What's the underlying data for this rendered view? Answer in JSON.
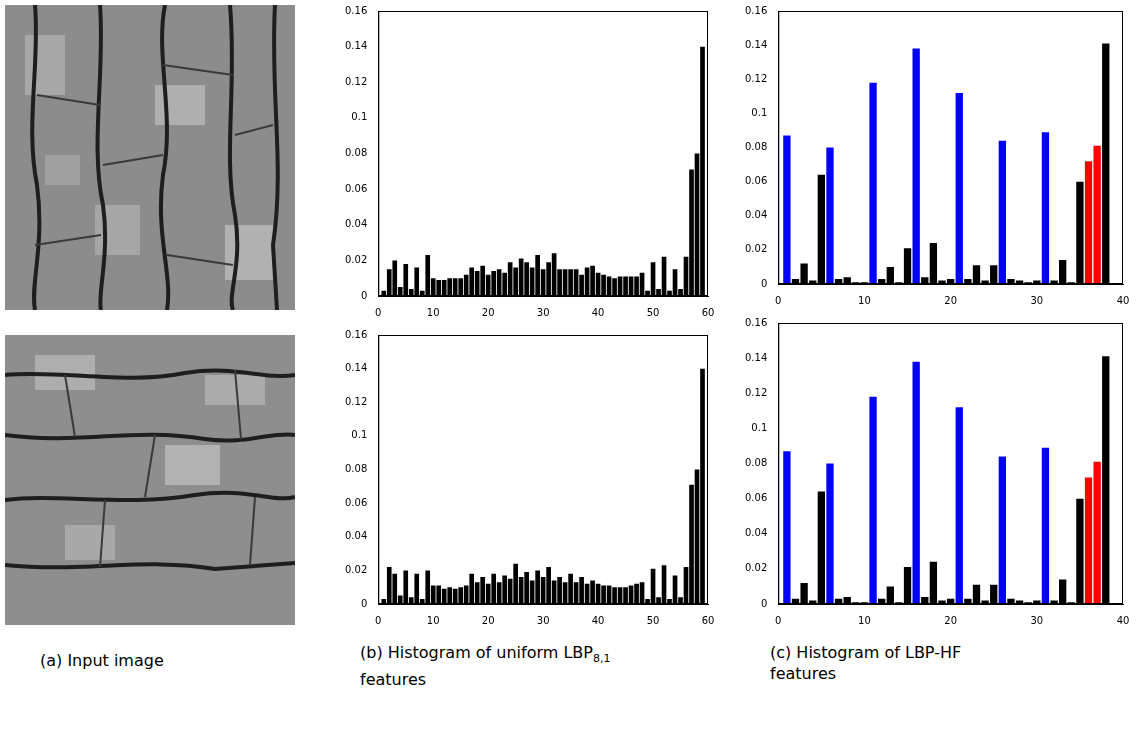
{
  "captions": [
    {
      "text": "(a) Input image"
    },
    {
      "text": "(b) Histogram of uniform LBP",
      "subscript": "8,1",
      "text_after": " features"
    },
    {
      "text": "(c) Histogram of LBP-HF features"
    }
  ],
  "chart_data": [
    {
      "type": "bar",
      "x": [
        1,
        2,
        3,
        4,
        5,
        6,
        7,
        8,
        9,
        10,
        11,
        12,
        13,
        14,
        15,
        16,
        17,
        18,
        19,
        20,
        21,
        22,
        23,
        24,
        25,
        26,
        27,
        28,
        29,
        30,
        31,
        32,
        33,
        34,
        35,
        36,
        37,
        38,
        39,
        40,
        41,
        42,
        43,
        44,
        45,
        46,
        47,
        48,
        49,
        50,
        51,
        52,
        53,
        54,
        55,
        56,
        57,
        58,
        59
      ],
      "values": [
        0.003,
        0.015,
        0.02,
        0.005,
        0.018,
        0.004,
        0.016,
        0.003,
        0.023,
        0.01,
        0.009,
        0.009,
        0.01,
        0.01,
        0.01,
        0.012,
        0.016,
        0.014,
        0.017,
        0.012,
        0.014,
        0.015,
        0.013,
        0.019,
        0.016,
        0.021,
        0.019,
        0.016,
        0.023,
        0.015,
        0.019,
        0.024,
        0.015,
        0.015,
        0.015,
        0.015,
        0.012,
        0.016,
        0.017,
        0.013,
        0.012,
        0.011,
        0.01,
        0.011,
        0.011,
        0.011,
        0.011,
        0.013,
        0.003,
        0.019,
        0.004,
        0.022,
        0.003,
        0.015,
        0.004,
        0.022,
        0.071,
        0.08,
        0.14
      ],
      "color": "#000000",
      "xlim": [
        0,
        60
      ],
      "xticks": [
        0,
        10,
        20,
        30,
        40,
        50,
        60
      ],
      "ylim": [
        0,
        0.16
      ],
      "yticks": [
        0,
        0.02,
        0.04,
        0.06,
        0.08,
        0.1,
        0.12,
        0.14,
        0.16
      ],
      "grid": false
    },
    {
      "type": "bar",
      "x": [
        1,
        2,
        3,
        4,
        5,
        6,
        7,
        8,
        9,
        10,
        11,
        12,
        13,
        14,
        15,
        16,
        17,
        18,
        19,
        20,
        21,
        22,
        23,
        24,
        25,
        26,
        27,
        28,
        29,
        30,
        31,
        32,
        33,
        34,
        35,
        36,
        37,
        38,
        39,
        40,
        41,
        42,
        43,
        44,
        45,
        46,
        47,
        48,
        49,
        50,
        51,
        52,
        53,
        54,
        55,
        56,
        57,
        58,
        59
      ],
      "values": [
        0.003,
        0.022,
        0.018,
        0.005,
        0.02,
        0.004,
        0.018,
        0.003,
        0.02,
        0.011,
        0.011,
        0.009,
        0.01,
        0.009,
        0.01,
        0.011,
        0.018,
        0.013,
        0.016,
        0.012,
        0.018,
        0.013,
        0.017,
        0.015,
        0.024,
        0.016,
        0.019,
        0.014,
        0.02,
        0.016,
        0.022,
        0.014,
        0.016,
        0.013,
        0.018,
        0.013,
        0.016,
        0.012,
        0.014,
        0.012,
        0.011,
        0.011,
        0.01,
        0.01,
        0.01,
        0.011,
        0.012,
        0.013,
        0.003,
        0.021,
        0.004,
        0.023,
        0.003,
        0.017,
        0.004,
        0.022,
        0.071,
        0.08,
        0.14
      ],
      "color": "#000000",
      "xlim": [
        0,
        60
      ],
      "xticks": [
        0,
        10,
        20,
        30,
        40,
        50,
        60
      ],
      "ylim": [
        0,
        0.16
      ],
      "yticks": [
        0,
        0.02,
        0.04,
        0.06,
        0.08,
        0.1,
        0.12,
        0.14,
        0.16
      ],
      "grid": false
    },
    {
      "type": "bar",
      "x": [
        1,
        2,
        3,
        4,
        5,
        6,
        7,
        8,
        9,
        10,
        11,
        12,
        13,
        14,
        15,
        16,
        17,
        18,
        19,
        20,
        21,
        22,
        23,
        24,
        25,
        26,
        27,
        28,
        29,
        30,
        31,
        32,
        33,
        34,
        35,
        36,
        37,
        38
      ],
      "values": [
        0.087,
        0.003,
        0.012,
        0.002,
        0.064,
        0.08,
        0.003,
        0.004,
        0.001,
        0.001,
        0.118,
        0.003,
        0.01,
        0.001,
        0.021,
        0.138,
        0.004,
        0.024,
        0.002,
        0.003,
        0.112,
        0.003,
        0.011,
        0.002,
        0.011,
        0.084,
        0.003,
        0.002,
        0.001,
        0.002,
        0.089,
        0.002,
        0.014,
        0.001,
        0.06,
        0.072,
        0.081,
        0.141
      ],
      "colors": [
        "#0000ff",
        "#000000",
        "#000000",
        "#000000",
        "#000000",
        "#0000ff",
        "#000000",
        "#000000",
        "#000000",
        "#000000",
        "#0000ff",
        "#000000",
        "#000000",
        "#000000",
        "#000000",
        "#0000ff",
        "#000000",
        "#000000",
        "#000000",
        "#000000",
        "#0000ff",
        "#000000",
        "#000000",
        "#000000",
        "#000000",
        "#0000ff",
        "#000000",
        "#000000",
        "#000000",
        "#000000",
        "#0000ff",
        "#000000",
        "#000000",
        "#000000",
        "#000000",
        "#ff0000",
        "#ff0000",
        "#000000"
      ],
      "xlim": [
        0,
        40
      ],
      "xticks": [
        0,
        10,
        20,
        30,
        40
      ],
      "ylim": [
        0,
        0.16
      ],
      "yticks": [
        0,
        0.02,
        0.04,
        0.06,
        0.08,
        0.1,
        0.12,
        0.14,
        0.16
      ],
      "grid": false
    },
    {
      "type": "bar",
      "x": [
        1,
        2,
        3,
        4,
        5,
        6,
        7,
        8,
        9,
        10,
        11,
        12,
        13,
        14,
        15,
        16,
        17,
        18,
        19,
        20,
        21,
        22,
        23,
        24,
        25,
        26,
        27,
        28,
        29,
        30,
        31,
        32,
        33,
        34,
        35,
        36,
        37,
        38
      ],
      "values": [
        0.087,
        0.003,
        0.012,
        0.002,
        0.064,
        0.08,
        0.003,
        0.004,
        0.001,
        0.001,
        0.118,
        0.003,
        0.01,
        0.001,
        0.021,
        0.138,
        0.004,
        0.024,
        0.002,
        0.003,
        0.112,
        0.003,
        0.011,
        0.002,
        0.011,
        0.084,
        0.003,
        0.002,
        0.001,
        0.002,
        0.089,
        0.002,
        0.014,
        0.001,
        0.06,
        0.072,
        0.081,
        0.141
      ],
      "colors": [
        "#0000ff",
        "#000000",
        "#000000",
        "#000000",
        "#000000",
        "#0000ff",
        "#000000",
        "#000000",
        "#000000",
        "#000000",
        "#0000ff",
        "#000000",
        "#000000",
        "#000000",
        "#000000",
        "#0000ff",
        "#000000",
        "#000000",
        "#000000",
        "#000000",
        "#0000ff",
        "#000000",
        "#000000",
        "#000000",
        "#000000",
        "#0000ff",
        "#000000",
        "#000000",
        "#000000",
        "#000000",
        "#0000ff",
        "#000000",
        "#000000",
        "#000000",
        "#000000",
        "#ff0000",
        "#ff0000",
        "#000000"
      ],
      "xlim": [
        0,
        40
      ],
      "xticks": [
        0,
        10,
        20,
        30,
        40
      ],
      "ylim": [
        0,
        0.16
      ],
      "yticks": [
        0,
        0.02,
        0.04,
        0.06,
        0.08,
        0.1,
        0.12,
        0.14,
        0.16
      ],
      "grid": false
    }
  ]
}
